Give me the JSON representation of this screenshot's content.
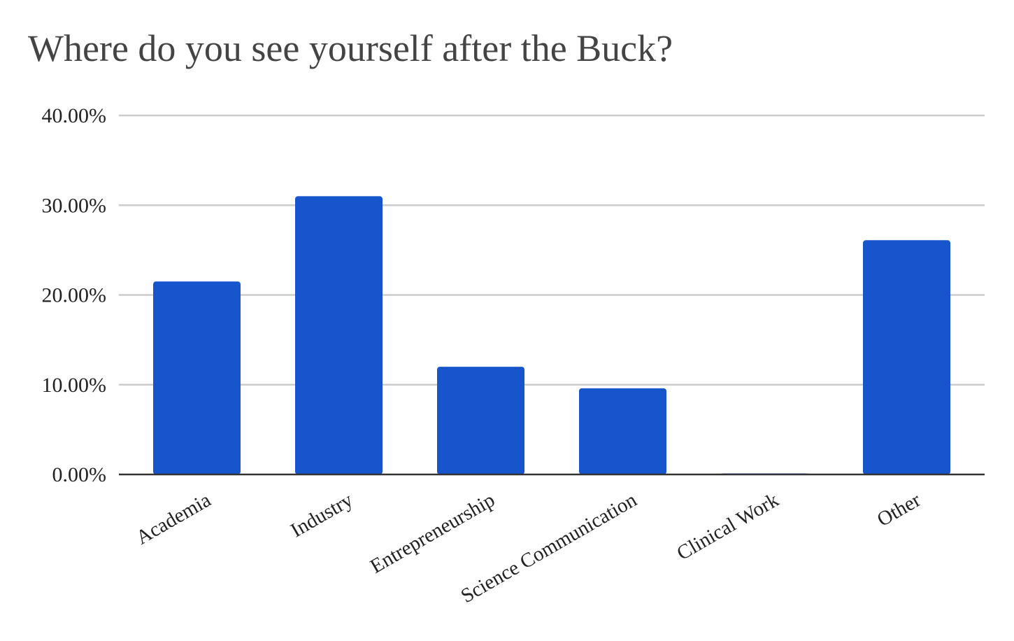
{
  "chart_data": {
    "type": "bar",
    "title": "Where do you see yourself after the Buck?",
    "categories": [
      "Academia",
      "Industry",
      "Entrepreneurship",
      "Science Communication",
      "Clinical Work",
      "Other"
    ],
    "values": [
      21.5,
      31.0,
      12.0,
      9.6,
      0.1,
      26.1
    ],
    "y_ticks": [
      "0.00%",
      "10.00%",
      "20.00%",
      "30.00%",
      "40.00%"
    ],
    "ylim": [
      0,
      40
    ],
    "grid": true,
    "legend": "none",
    "colors": {
      "bar": "#1655cc",
      "grid": "#cccccc",
      "baseline": "#333333"
    }
  }
}
